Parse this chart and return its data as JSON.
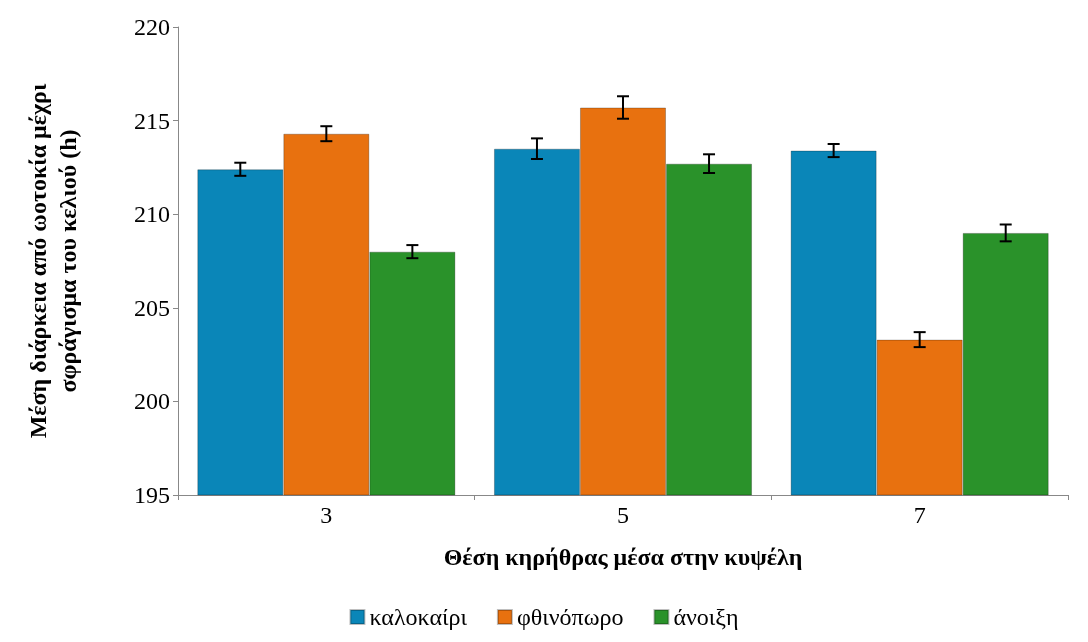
{
  "chart_data": {
    "type": "bar",
    "xlabel": "Θέση κηρήθρας μέσα στην κυψέλη",
    "ylabel": "Μέση διάρκεια από ωοτοκία μέχρι\nσφράγισμα του κελιού (h)",
    "categories": [
      "3",
      "5",
      "7"
    ],
    "series": [
      {
        "name": "καλοκαίρι",
        "color": "#0a86b8",
        "values": [
          212.4,
          213.5,
          213.4
        ],
        "errors": [
          0.35,
          0.55,
          0.35
        ]
      },
      {
        "name": "φθινόπωρο",
        "color": "#e8710f",
        "values": [
          214.3,
          215.7,
          203.3
        ],
        "errors": [
          0.4,
          0.6,
          0.4
        ]
      },
      {
        "name": "άνοιξη",
        "color": "#2a922a",
        "values": [
          208.0,
          212.7,
          209.0
        ],
        "errors": [
          0.35,
          0.5,
          0.45
        ]
      }
    ],
    "ylim": [
      195,
      220
    ],
    "yticks": [
      195,
      200,
      205,
      210,
      215,
      220
    ],
    "grid": false,
    "legend": "bottom"
  }
}
